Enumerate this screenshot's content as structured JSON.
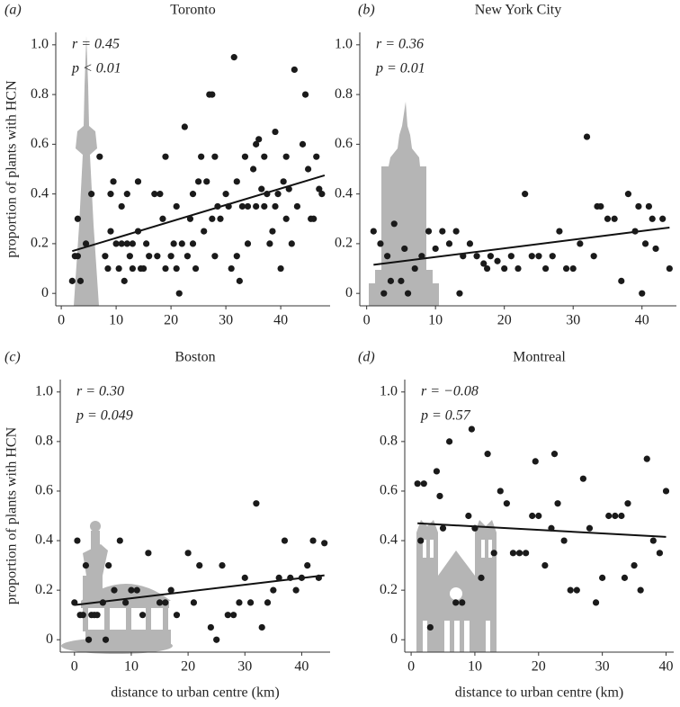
{
  "chart_data": [
    {
      "type": "scatter",
      "panel_label": "(a)",
      "title": "Toronto",
      "ylabel": "proportion of plants with HCN",
      "annotations": [
        "r = 0.45",
        "p < 0.01"
      ],
      "x": [
        2,
        2.5,
        3,
        3.5,
        3,
        4.5,
        5.5,
        7,
        8,
        8.5,
        9,
        9.5,
        9,
        10,
        10.5,
        11,
        11,
        11.5,
        12,
        12,
        12.5,
        13,
        13,
        14,
        14,
        14.5,
        15,
        15.5,
        16,
        17,
        17.5,
        18,
        18.5,
        19,
        19,
        20,
        20.5,
        21,
        21,
        21.5,
        22,
        22.5,
        23,
        23.5,
        24,
        24,
        24.5,
        25,
        25.5,
        26,
        26.5,
        27,
        27.5,
        27.5,
        28,
        28,
        28.5,
        29,
        30,
        30.5,
        31,
        31.5,
        32,
        32,
        32.5,
        33,
        33.5,
        34,
        34,
        35,
        35.5,
        35.5,
        36,
        36.5,
        37,
        37,
        37.5,
        38,
        38.5,
        39,
        39,
        39.5,
        40,
        40.5,
        41,
        41,
        41.5,
        42,
        42.5,
        43,
        44,
        44.5,
        45,
        45.5,
        46,
        46.5,
        47,
        47.5
      ],
      "values": [
        0.05,
        0.15,
        0.3,
        0.05,
        0.15,
        0.2,
        0.4,
        0.55,
        0.15,
        0.1,
        0.4,
        0.45,
        0.25,
        0.2,
        0.1,
        0.2,
        0.35,
        0.05,
        0.2,
        0.4,
        0.15,
        0.2,
        0.1,
        0.25,
        0.45,
        0.1,
        0.1,
        0.2,
        0.15,
        0.4,
        0.15,
        0.4,
        0.3,
        0.55,
        0.1,
        0.15,
        0.2,
        0.35,
        0.1,
        0,
        0.2,
        0.67,
        0.15,
        0.3,
        0.2,
        0.4,
        0.1,
        0.45,
        0.55,
        0.25,
        0.45,
        0.8,
        0.3,
        0.8,
        0.15,
        0.55,
        0.35,
        0.3,
        0.4,
        0.35,
        0.1,
        0.95,
        0.15,
        0.45,
        0.05,
        0.35,
        0.55,
        0.2,
        0.35,
        0.5,
        0.6,
        0.35,
        0.62,
        0.42,
        0.55,
        0.35,
        0.4,
        0.2,
        0.25,
        0.65,
        0.35,
        0.4,
        0.1,
        0.45,
        0.55,
        0.3,
        0.42,
        0.2,
        0.9,
        0.35,
        0.6,
        0.8,
        0.5,
        0.3,
        0.3,
        0.55,
        0.42,
        0.4
      ],
      "color": "#1a1a1a",
      "fit": {
        "x": [
          2,
          48
        ],
        "values": [
          0.17,
          0.475
        ],
        "color": "#111111"
      },
      "xlim": [
        -1,
        49
      ],
      "ylim": [
        -0.05,
        1.05
      ],
      "xticks": [
        0,
        10,
        20,
        30,
        40
      ],
      "yticks": [
        0,
        0.2,
        0.4,
        0.6,
        0.8,
        {
          "value": 1,
          "label": "1.0"
        }
      ]
    },
    {
      "type": "scatter",
      "panel_label": "(b)",
      "title": "New York City",
      "annotations": [
        "r = 0.36",
        "p = 0.01"
      ],
      "x": [
        1,
        2,
        2.5,
        3,
        3.5,
        4,
        5,
        5.5,
        6,
        7,
        8,
        9,
        10,
        11,
        12,
        13,
        13.5,
        14,
        15,
        16,
        17,
        17.5,
        18,
        19,
        20,
        21,
        22,
        23,
        24,
        25,
        26,
        27,
        28,
        29,
        30,
        31,
        32,
        33,
        33.5,
        34,
        35,
        36,
        37,
        38,
        39,
        39.5,
        40,
        40.5,
        41,
        41.5,
        42,
        43,
        44
      ],
      "values": [
        0.25,
        0.2,
        0,
        0.15,
        0.05,
        0.28,
        0.05,
        0.18,
        0,
        0.1,
        0.15,
        0.25,
        0.18,
        0.25,
        0.2,
        0.25,
        0,
        0.15,
        0.2,
        0.15,
        0.12,
        0.1,
        0.15,
        0.13,
        0.1,
        0.15,
        0.1,
        0.4,
        0.15,
        0.15,
        0.1,
        0.15,
        0.25,
        0.1,
        0.1,
        0.2,
        0.63,
        0.15,
        0.35,
        0.35,
        0.3,
        0.3,
        0.05,
        0.4,
        0.25,
        0.35,
        0,
        0.2,
        0.35,
        0.3,
        0.18,
        0.3,
        0.1
      ],
      "color": "#1a1a1a",
      "fit": {
        "x": [
          1,
          44
        ],
        "values": [
          0.115,
          0.265
        ],
        "color": "#111111"
      },
      "xlim": [
        -1,
        45
      ],
      "ylim": [
        -0.05,
        1.05
      ],
      "xticks": [
        0,
        10,
        20,
        30,
        40
      ],
      "yticks": [
        0,
        0.2,
        0.4,
        0.6,
        0.8,
        {
          "value": 1,
          "label": "1.0"
        }
      ]
    },
    {
      "type": "scatter",
      "panel_label": "(c)",
      "title": "Boston",
      "ylabel": "proportion of plants with HCN",
      "xlabel": "distance to urban centre (km)",
      "annotations": [
        "r = 0.30",
        "p = 0.049"
      ],
      "x": [
        0,
        0.5,
        1,
        1.5,
        2,
        2.5,
        3,
        3.5,
        4,
        5,
        5.5,
        6,
        7,
        8,
        9,
        10,
        11,
        12,
        13,
        15,
        16,
        17,
        18,
        20,
        21,
        22,
        24,
        25,
        26,
        27,
        28,
        29,
        30,
        31,
        32,
        33,
        34,
        35,
        36,
        37,
        38,
        39,
        40,
        41,
        42,
        43,
        44
      ],
      "values": [
        0.15,
        0.4,
        0.1,
        0.1,
        0.3,
        0,
        0.1,
        0.1,
        0.1,
        0.15,
        0,
        0.3,
        0.2,
        0.4,
        0.15,
        0.2,
        0.2,
        0.1,
        0.35,
        0.15,
        0.15,
        0.2,
        0.1,
        0.35,
        0.15,
        0.3,
        0.05,
        0,
        0.3,
        0.1,
        0.1,
        0.15,
        0.25,
        0.15,
        0.55,
        0.05,
        0.15,
        0.2,
        0.25,
        0.4,
        0.25,
        0.2,
        0.25,
        0.3,
        0.4,
        0.25,
        0.39
      ],
      "color": "#1a1a1a",
      "fit": {
        "x": [
          0,
          44
        ],
        "values": [
          0.14,
          0.26
        ],
        "color": "#111111"
      },
      "xlim": [
        -2.5,
        45
      ],
      "ylim": [
        -0.05,
        1.05
      ],
      "xticks": [
        0,
        10,
        20,
        30,
        40
      ],
      "yticks": [
        0,
        0.2,
        0.4,
        0.6,
        0.8,
        {
          "value": 1,
          "label": "1.0"
        }
      ]
    },
    {
      "type": "scatter",
      "panel_label": "(d)",
      "title": "Montreal",
      "xlabel": "distance to urban centre (km)",
      "annotations": [
        "r = −0.08",
        "p = 0.57"
      ],
      "x": [
        1,
        1.5,
        2,
        3,
        4,
        4.5,
        5,
        6,
        7,
        8,
        9,
        9.5,
        10,
        11,
        12,
        13,
        14,
        15,
        16,
        17,
        18,
        19,
        19.5,
        20,
        21,
        22,
        22.5,
        23,
        24,
        25,
        26,
        27,
        28,
        29,
        30,
        31,
        32,
        33,
        33.5,
        34,
        35,
        36,
        37,
        38,
        39,
        40
      ],
      "values": [
        0.63,
        0.4,
        0.63,
        0.05,
        0.68,
        0.58,
        0.45,
        0.8,
        0.15,
        0.15,
        0.5,
        0.85,
        0.45,
        0.25,
        0.75,
        0.35,
        0.6,
        0.55,
        0.35,
        0.35,
        0.35,
        0.5,
        0.72,
        0.5,
        0.3,
        0.45,
        0.75,
        0.55,
        0.4,
        0.2,
        0.2,
        0.65,
        0.45,
        0.15,
        0.25,
        0.5,
        0.5,
        0.5,
        0.25,
        0.55,
        0.3,
        0.2,
        0.73,
        0.4,
        0.35,
        0.6
      ],
      "color": "#1a1a1a",
      "fit": {
        "x": [
          1,
          40
        ],
        "values": [
          0.47,
          0.415
        ],
        "color": "#111111"
      },
      "xlim": [
        -1,
        41.2
      ],
      "ylim": [
        -0.05,
        1.05
      ],
      "xticks": [
        0,
        10,
        20,
        30,
        40
      ],
      "yticks": [
        0,
        0.2,
        0.4,
        0.6,
        0.8,
        {
          "value": 1,
          "label": "1.0"
        }
      ]
    }
  ]
}
